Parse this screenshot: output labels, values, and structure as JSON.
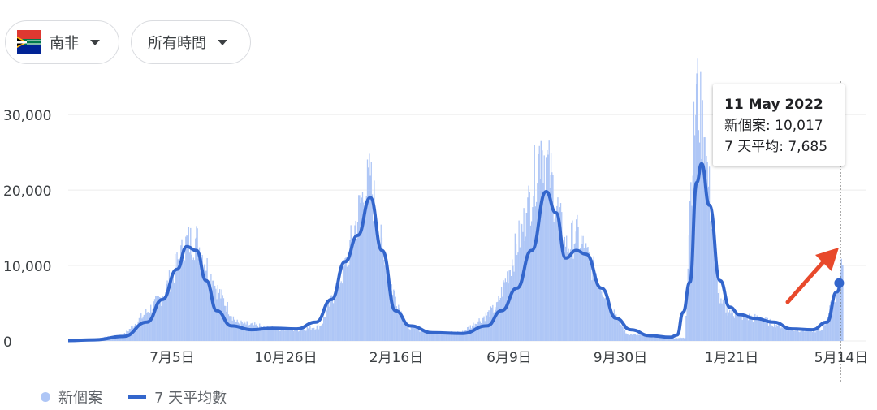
{
  "filters": {
    "region": "南非",
    "time": "所有時間"
  },
  "colors": {
    "bars": "#aec6f6",
    "line": "#3366cc",
    "grid": "#ececec",
    "arrow": "#e8492b"
  },
  "tooltip": {
    "date": "11 May 2022",
    "new_cases_label": "新個案: 10,017",
    "avg_label": "7 天平均: 7,685"
  },
  "legend": {
    "bars_label": "新個案",
    "line_label": "7 天平均數"
  },
  "chart_data": {
    "type": "bar",
    "ylim": [
      0,
      34000
    ],
    "y_ticks": [
      {
        "value": 0,
        "label": "0"
      },
      {
        "value": 10000,
        "label": "10,000"
      },
      {
        "value": 20000,
        "label": "20,000"
      },
      {
        "value": 30000,
        "label": "30,000"
      }
    ],
    "x_ticks": [
      "7月5日",
      "10月26日",
      "2月16日",
      "6月9日",
      "9月30日",
      "1月21日",
      "5月14日"
    ],
    "x_range": [
      "2020-03-05",
      "2022-05-14"
    ],
    "series": [
      {
        "name": "新個案",
        "type": "bar",
        "x": [
          "2020-03-20",
          "2020-05-01",
          "2020-06-10",
          "2020-07-05",
          "2020-07-15",
          "2020-08-01",
          "2020-08-25",
          "2020-10-01",
          "2020-10-26",
          "2020-11-20",
          "2020-12-15",
          "2021-01-01",
          "2021-01-10",
          "2021-01-25",
          "2021-02-16",
          "2021-03-15",
          "2021-04-15",
          "2021-05-20",
          "2021-06-20",
          "2021-07-05",
          "2021-07-15",
          "2021-07-30",
          "2021-08-10",
          "2021-08-30",
          "2021-09-30",
          "2021-10-30",
          "2021-11-30",
          "2021-12-05",
          "2021-12-12",
          "2021-12-20",
          "2022-01-05",
          "2022-01-21",
          "2022-02-15",
          "2022-03-20",
          "2022-04-20",
          "2022-05-05",
          "2022-05-11"
        ],
        "values": [
          100,
          800,
          6000,
          13300,
          13700,
          8000,
          2500,
          1700,
          1500,
          2000,
          10000,
          19000,
          21900,
          10000,
          2000,
          1000,
          1200,
          4500,
          17000,
          26500,
          22000,
          12500,
          14500,
          9000,
          1000,
          500,
          400,
          18500,
          34000,
          27000,
          5000,
          3500,
          3000,
          1500,
          1400,
          6500,
          10017
        ]
      },
      {
        "name": "7 天平均數",
        "type": "line",
        "x": [
          "2020-03-05",
          "2020-04-01",
          "2020-05-01",
          "2020-05-25",
          "2020-06-10",
          "2020-06-25",
          "2020-07-05",
          "2020-07-15",
          "2020-07-25",
          "2020-08-05",
          "2020-08-20",
          "2020-09-10",
          "2020-10-01",
          "2020-10-26",
          "2020-11-15",
          "2020-12-01",
          "2020-12-15",
          "2020-12-28",
          "2021-01-10",
          "2021-01-22",
          "2021-02-05",
          "2021-02-20",
          "2021-03-15",
          "2021-04-15",
          "2021-05-10",
          "2021-05-25",
          "2021-06-10",
          "2021-06-25",
          "2021-07-10",
          "2021-07-20",
          "2021-07-30",
          "2021-08-10",
          "2021-08-20",
          "2021-09-05",
          "2021-09-20",
          "2021-10-05",
          "2021-10-25",
          "2021-11-15",
          "2021-11-22",
          "2021-11-28",
          "2021-12-05",
          "2021-12-12",
          "2021-12-17",
          "2021-12-25",
          "2022-01-05",
          "2022-01-15",
          "2022-01-25",
          "2022-02-10",
          "2022-03-01",
          "2022-03-20",
          "2022-04-10",
          "2022-04-25",
          "2022-05-05",
          "2022-05-11"
        ],
        "values": [
          50,
          150,
          600,
          2500,
          5500,
          9500,
          12500,
          12000,
          8000,
          4000,
          2000,
          1500,
          1700,
          1600,
          2500,
          5500,
          10500,
          14000,
          19000,
          12000,
          4000,
          2000,
          1100,
          1000,
          2000,
          4000,
          7000,
          12000,
          19800,
          17000,
          11000,
          12000,
          11500,
          7000,
          3000,
          1500,
          700,
          500,
          800,
          3800,
          7800,
          21000,
          23500,
          18000,
          8000,
          4500,
          3500,
          3000,
          2500,
          1600,
          1500,
          2500,
          6500,
          7685
        ]
      }
    ]
  }
}
